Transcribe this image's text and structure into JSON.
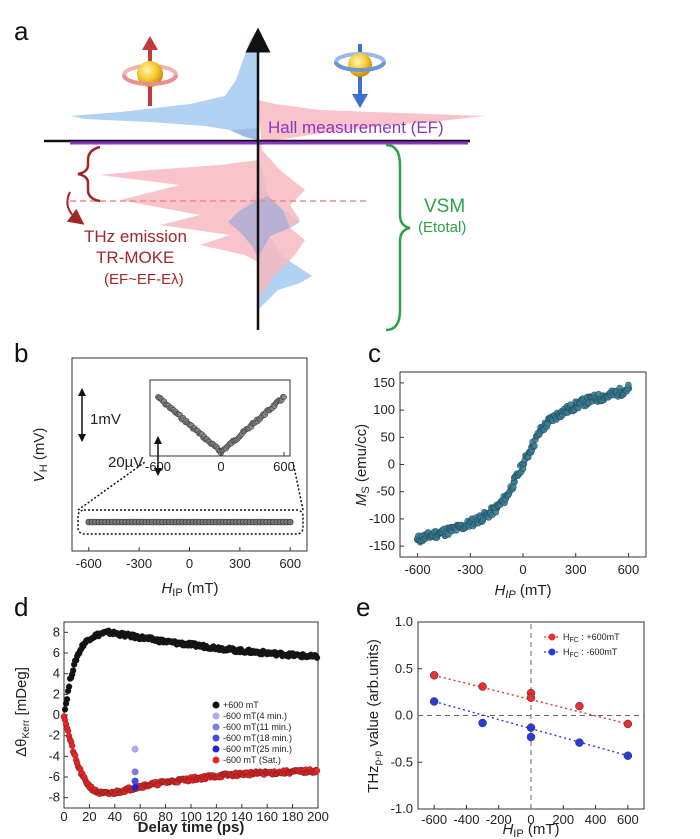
{
  "panel_labels": {
    "a": "a",
    "b": "b",
    "c": "c",
    "d": "d",
    "e": "e"
  },
  "panel_a": {
    "hall_label": "Hall measurement (EF)",
    "thz_label": "THz emission",
    "trmoke_label": "TR-MOKE",
    "thz_range_label": "(EF~EF-Eλ)",
    "vsm_label": "VSM",
    "vsm_sub": "(Etotal)",
    "colors": {
      "spin_up_dos": "#a9cdf2",
      "spin_down_dos": "#f7b9bf",
      "hall_line": "#8c34c4",
      "thz_text": "#a3262a",
      "vsm_text": "#2fa04a"
    }
  },
  "chart_data": [
    {
      "id": "b",
      "type": "scatter",
      "xlabel_main": "H",
      "xlabel_sub": "IP",
      "xlabel_unit": " (mT)",
      "ylabel_main": "V",
      "ylabel_sub": "H",
      "ylabel_unit": " (mV)",
      "xlim": [
        -700,
        700
      ],
      "xticks": [
        "-600",
        "-300",
        "0",
        "300",
        "600"
      ],
      "scalebar_main": "1mV",
      "inset_scalebar": "20µV",
      "inset_xticks": [
        "-600",
        "0",
        "600"
      ],
      "series": [
        {
          "x_range": [
            -600,
            600
          ],
          "y": 0,
          "inset_shape": "V-shaped, minimum at 0 mT, rising ~70 µV at ±600 mT"
        }
      ]
    },
    {
      "id": "c",
      "type": "scatter",
      "xlabel_main": "H",
      "xlabel_sub": "IP",
      "xlabel_unit": " (mT)",
      "ylabel_main": "M",
      "ylabel_sub": "S",
      "ylabel_unit": " (emu/cc)",
      "xlim": [
        -700,
        700
      ],
      "ylim": [
        -170,
        170
      ],
      "xticks": [
        -600,
        -300,
        0,
        300,
        600
      ],
      "yticks": [
        -150,
        -100,
        -50,
        0,
        50,
        100,
        150
      ],
      "series": [
        {
          "x": [
            -600,
            -550,
            -500,
            -450,
            -400,
            -350,
            -300,
            -250,
            -200,
            -150,
            -100,
            -50,
            0,
            50,
            100,
            150,
            200,
            250,
            300,
            350,
            400,
            450,
            500,
            550,
            600
          ],
          "y": [
            -138,
            -133,
            -128,
            -124,
            -120,
            -115,
            -108,
            -100,
            -92,
            -80,
            -62,
            -32,
            0,
            32,
            62,
            80,
            92,
            100,
            108,
            115,
            120,
            124,
            128,
            133,
            140
          ]
        }
      ],
      "marker_color": "#3b7e96"
    },
    {
      "id": "d",
      "type": "line",
      "xlabel": "Delay time (ps)",
      "ylabel_main": "Δθ",
      "ylabel_sub": "Kerr",
      "ylabel_unit": " [mDeg]",
      "xlim": [
        0,
        200
      ],
      "ylim": [
        -9,
        9
      ],
      "xticks": [
        0,
        20,
        40,
        60,
        80,
        100,
        120,
        140,
        160,
        180,
        200
      ],
      "yticks": [
        -8,
        -6,
        -4,
        -2,
        0,
        2,
        4,
        6,
        8
      ],
      "series": [
        {
          "name": "+600 mT",
          "color": "#111111",
          "x": [
            0,
            5,
            10,
            15,
            20,
            25,
            30,
            35,
            40,
            50,
            60,
            80,
            100,
            120,
            140,
            160,
            180,
            200
          ],
          "y": [
            0,
            3.5,
            5.6,
            6.8,
            7.4,
            7.7,
            7.9,
            8.0,
            7.9,
            7.7,
            7.5,
            7.1,
            6.8,
            6.5,
            6.2,
            6.0,
            5.8,
            5.6
          ]
        },
        {
          "name": "-600 mT (Sat.)",
          "color": "#ee2222",
          "x": [
            0,
            5,
            10,
            15,
            20,
            25,
            30,
            35,
            40,
            50,
            60,
            80,
            100,
            120,
            140,
            160,
            180,
            200
          ],
          "y": [
            0,
            -2.5,
            -4.6,
            -6.0,
            -6.9,
            -7.4,
            -7.6,
            -7.6,
            -7.5,
            -7.2,
            -6.9,
            -6.5,
            -6.2,
            -5.9,
            -5.7,
            -5.6,
            -5.5,
            -5.4
          ]
        },
        {
          "name": "-600 mT(4 min.)",
          "color": "#aaaaee",
          "x": [
            56
          ],
          "y": [
            -3.3
          ]
        },
        {
          "name": "-600 mT(11 min.)",
          "color": "#7b7be6",
          "x": [
            56
          ],
          "y": [
            -5.5
          ]
        },
        {
          "name": "-600 mT(18 min.)",
          "color": "#4848dd",
          "x": [
            56
          ],
          "y": [
            -6.4
          ]
        },
        {
          "name": "-600 mT(25 min.)",
          "color": "#2222cc",
          "x": [
            56
          ],
          "y": [
            -7.0
          ]
        }
      ]
    },
    {
      "id": "e",
      "type": "scatter",
      "xlabel_main": "H",
      "xlabel_sub": "IP",
      "xlabel_unit": " (mT)",
      "ylabel_main": "THz",
      "ylabel_sub": "p-p",
      "ylabel_unit": " value (arb.units)",
      "xlim": [
        -700,
        700
      ],
      "ylim": [
        -1.0,
        1.0
      ],
      "xticks": [
        -600,
        -400,
        -200,
        0,
        200,
        400,
        600
      ],
      "yticks": [
        "-1.0",
        "-0.5",
        "0.0",
        "0.5",
        "1.0"
      ],
      "series": [
        {
          "name_main": "H",
          "name_sub": "FC",
          "name_rest": " : +600mT",
          "color": "#e83030",
          "x": [
            -600,
            -300,
            0,
            0,
            300,
            600
          ],
          "y": [
            0.43,
            0.31,
            0.24,
            0.19,
            0.1,
            -0.09
          ]
        },
        {
          "name_main": "H",
          "name_sub": "FC",
          "name_rest": " : -600mT",
          "color": "#2a3cd6",
          "x": [
            -600,
            -300,
            0,
            0,
            300,
            600
          ],
          "y": [
            0.15,
            -0.08,
            -0.13,
            -0.23,
            -0.29,
            -0.43
          ]
        }
      ]
    }
  ]
}
